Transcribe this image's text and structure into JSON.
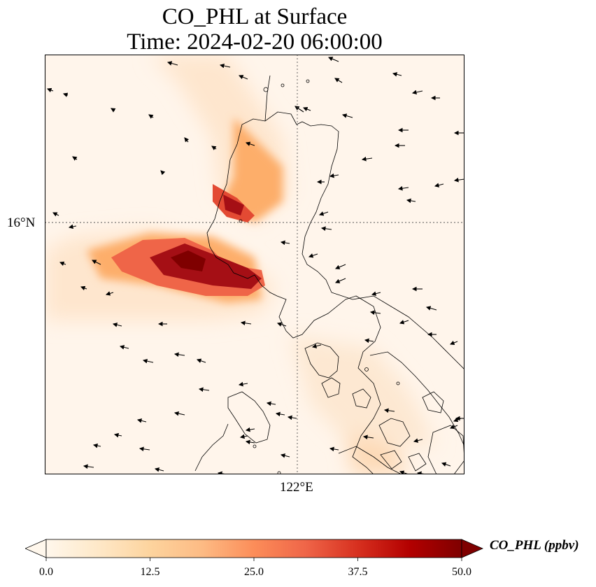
{
  "title": {
    "line1": "CO_PHL at Surface",
    "line2": "Time: 2024-02-20 06:00:00"
  },
  "map": {
    "variable": "CO_PHL",
    "level": "Surface",
    "gridline_lat_label": "16°N",
    "gridline_lon_label": "122°E",
    "plume_colors": [
      "#fff5eb",
      "#fee6ce",
      "#fdd0a2",
      "#fdae6b",
      "#f16913",
      "#d94801",
      "#a50f15",
      "#7f0000"
    ]
  },
  "colorbar": {
    "label": "CO_PHL (ppbv)",
    "ticks": [
      "0.0",
      "12.5",
      "25.0",
      "37.5",
      "50.0"
    ],
    "min": 0.0,
    "max": 50.0,
    "colormap": "OrRd",
    "extend": "both",
    "colors": [
      "#fff7ec",
      "#fee8c8",
      "#fdd49e",
      "#fdbb84",
      "#fc8d59",
      "#ef6548",
      "#d7301f",
      "#b30000",
      "#7f0000"
    ]
  }
}
